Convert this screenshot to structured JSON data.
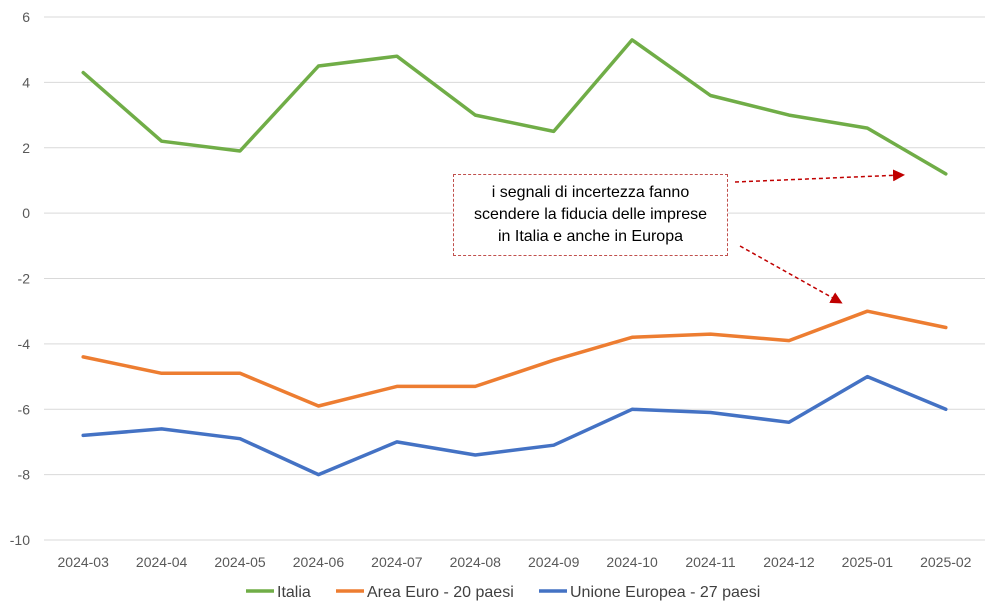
{
  "chart_data": {
    "type": "line",
    "categories": [
      "2024-03",
      "2024-04",
      "2024-05",
      "2024-06",
      "2024-07",
      "2024-08",
      "2024-09",
      "2024-10",
      "2024-11",
      "2024-12",
      "2025-01",
      "2025-02"
    ],
    "ylim": [
      -10,
      6
    ],
    "yticks": [
      6,
      4,
      2,
      0,
      -2,
      -4,
      -6,
      -8,
      -10
    ],
    "grid": true,
    "legend_position": "bottom",
    "series": [
      {
        "name": "Italia",
        "color": "#70ad47",
        "values": [
          4.3,
          2.2,
          1.9,
          4.5,
          4.8,
          3.0,
          2.5,
          5.3,
          3.6,
          3.0,
          2.6,
          1.2
        ]
      },
      {
        "name": "Area Euro - 20 paesi",
        "color": "#ed7d31",
        "values": [
          -4.4,
          -4.9,
          -4.9,
          -5.9,
          -5.3,
          -5.3,
          -4.5,
          -3.8,
          -3.7,
          -3.9,
          -3.0,
          -3.5
        ]
      },
      {
        "name": "Unione Europea - 27 paesi",
        "color": "#4472c4",
        "values": [
          -6.8,
          -6.6,
          -6.9,
          -8.0,
          -7.0,
          -7.4,
          -7.1,
          -6.0,
          -6.1,
          -6.4,
          -5.0,
          -6.0
        ]
      }
    ],
    "annotation": {
      "lines": [
        "i segnali di incertezza fanno",
        "scendere la fiducia delle imprese",
        "in Italia e anche in Europa"
      ],
      "arrow_color": "#c00000"
    }
  }
}
